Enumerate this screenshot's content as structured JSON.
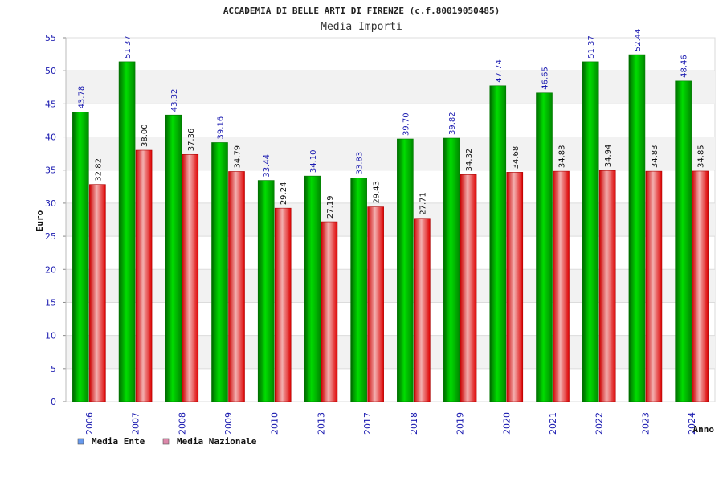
{
  "chart_data": {
    "type": "bar",
    "title": "ACCADEMIA DI BELLE ARTI DI FIRENZE (c.f.80019050485)",
    "subtitle": "Media Importi",
    "xlabel": "Anno",
    "ylabel": "Euro",
    "ylim": [
      0,
      55
    ],
    "yticks": [
      "0",
      "5",
      "10",
      "15",
      "20",
      "25",
      "30",
      "35",
      "40",
      "45",
      "50",
      "55"
    ],
    "categories": [
      "2006",
      "2007",
      "2008",
      "2009",
      "2010",
      "2013",
      "2017",
      "2018",
      "2019",
      "2020",
      "2021",
      "2022",
      "2023",
      "2024"
    ],
    "series": [
      {
        "name": "Media Ente",
        "values": [
          43.78,
          51.37,
          43.32,
          39.16,
          33.44,
          34.1,
          33.83,
          39.7,
          39.82,
          47.74,
          46.65,
          51.37,
          52.44,
          48.46
        ],
        "labels": [
          "43.78",
          "51.37",
          "43.32",
          "39.16",
          "33.44",
          "34.10",
          "33.83",
          "39.70",
          "39.82",
          "47.74",
          "46.65",
          "51.37",
          "52.44",
          "48.46"
        ],
        "color": "#00c000",
        "legend_color": "#6699ee",
        "label_color": "#1a1ab0"
      },
      {
        "name": "Media Nazionale",
        "values": [
          32.82,
          38.0,
          37.36,
          34.79,
          29.24,
          27.19,
          29.43,
          27.71,
          34.32,
          34.68,
          34.83,
          34.94,
          34.83,
          34.85
        ],
        "labels": [
          "32.82",
          "38.00",
          "37.36",
          "34.79",
          "29.24",
          "27.19",
          "29.43",
          "27.71",
          "34.32",
          "34.68",
          "34.83",
          "34.94",
          "34.83",
          "34.85"
        ],
        "color": "#ee0000",
        "legend_color": "#dd88aa",
        "label_color": "#111111"
      }
    ],
    "grid": true,
    "legend_position": "bottom-left"
  }
}
